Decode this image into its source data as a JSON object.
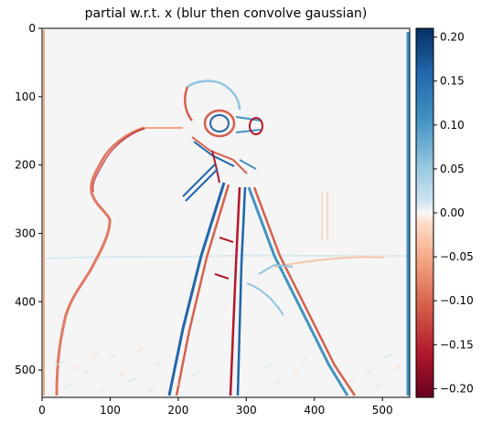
{
  "figure": {
    "title": "partial w.r.t. x (blur then convolve gaussian)",
    "x_ticks": [
      "0",
      "100",
      "200",
      "300",
      "400",
      "500"
    ],
    "y_ticks": [
      "0",
      "100",
      "200",
      "300",
      "400",
      "500"
    ],
    "x_range": [
      0,
      540
    ],
    "y_range": [
      0,
      540
    ],
    "colormap": "RdBu",
    "background_color": "#f5f5f5"
  },
  "colorbar": {
    "ticks": [
      "0.20",
      "0.15",
      "0.10",
      "0.05",
      "0.00",
      "−0.05",
      "−0.10",
      "−0.15",
      "−0.20"
    ],
    "range": [
      -0.21,
      0.21
    ],
    "top_color": "#053061",
    "mid_color": "#f7f7f7",
    "bottom_color": "#67001f"
  }
}
